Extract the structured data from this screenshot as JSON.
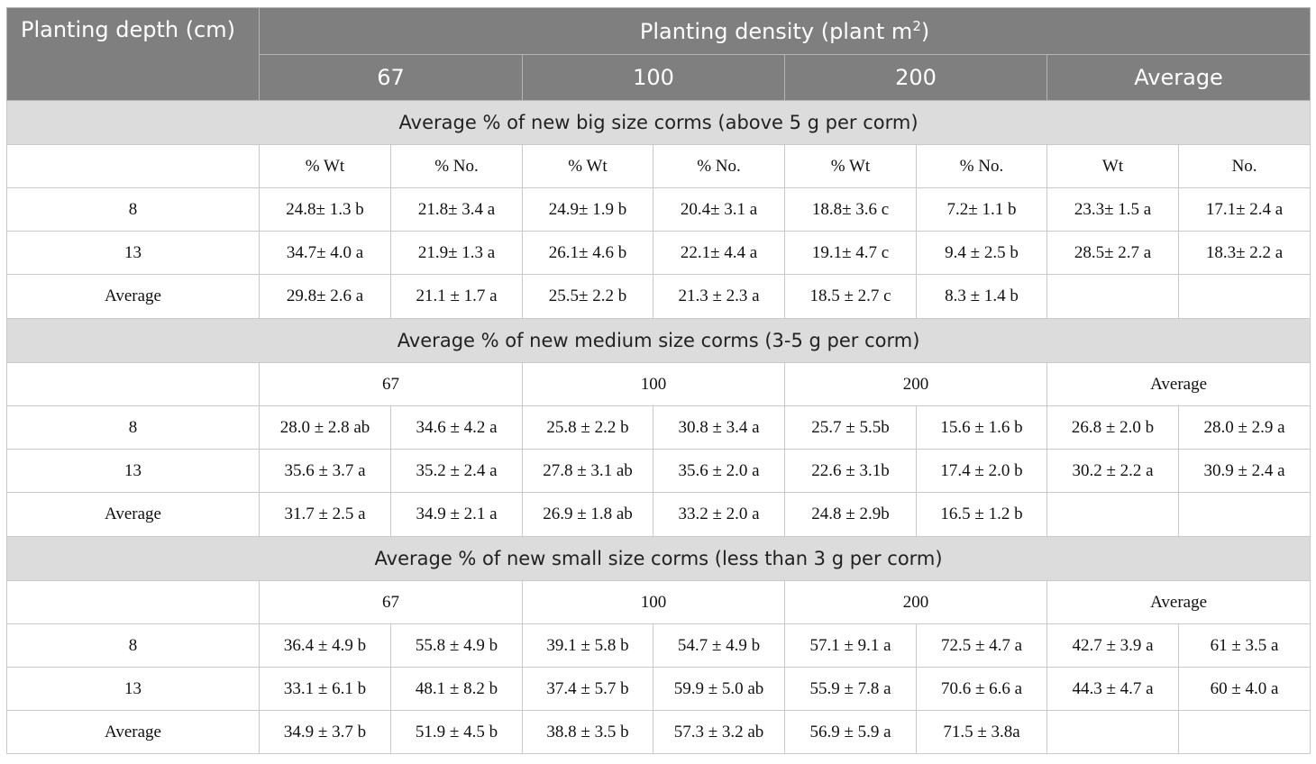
{
  "header": {
    "depth_label": "Planting depth (cm)",
    "density_label": "Planting density (plant m",
    "density_sup": "2",
    "density_close": ")",
    "columns": [
      "67",
      "100",
      "200",
      "Average"
    ]
  },
  "sections": [
    {
      "title": "Average % of new big size corms (above 5 g per corm)",
      "subheaders": [
        "% Wt",
        "% No.",
        "% Wt",
        "% No.",
        "% Wt",
        "% No.",
        "Wt",
        "No."
      ],
      "rows": [
        {
          "label": "8",
          "cells": [
            "24.8± 1.3 b",
            "21.8± 3.4 a",
            "24.9± 1.9 b",
            "20.4± 3.1 a",
            "18.8± 3.6 c",
            "7.2± 1.1 b",
            "23.3± 1.5 a",
            "17.1± 2.4 a"
          ]
        },
        {
          "label": "13",
          "cells": [
            "34.7± 4.0 a",
            "21.9± 1.3 a",
            "26.1± 4.6 b",
            "22.1± 4.4 a",
            "19.1± 4.7 c",
            "9.4 ± 2.5 b",
            "28.5± 2.7 a",
            "18.3± 2.2 a"
          ]
        },
        {
          "label": "Average",
          "cells": [
            "29.8± 2.6 a",
            "21.1 ± 1.7 a",
            "25.5± 2.2 b",
            "21.3 ± 2.3 a",
            "18.5 ± 2.7 c",
            "8.3 ± 1.4 b",
            "",
            ""
          ]
        }
      ]
    },
    {
      "title": "Average % of new medium size corms (3-5 g per corm)",
      "subheaders": [
        "67",
        "100",
        "200",
        "Average"
      ],
      "rows": [
        {
          "label": "8",
          "cells": [
            "28.0 ± 2.8 ab",
            "34.6 ± 4.2 a",
            "25.8 ± 2.2 b",
            "30.8 ± 3.4 a",
            "25.7 ± 5.5b",
            "15.6 ± 1.6 b",
            "26.8 ± 2.0 b",
            "28.0 ± 2.9 a"
          ]
        },
        {
          "label": "13",
          "cells": [
            "35.6 ± 3.7 a",
            "35.2 ± 2.4 a",
            "27.8 ± 3.1 ab",
            "35.6 ± 2.0 a",
            "22.6 ± 3.1b",
            "17.4 ± 2.0 b",
            "30.2 ± 2.2 a",
            "30.9 ± 2.4 a"
          ]
        },
        {
          "label": "Average",
          "cells": [
            "31.7 ± 2.5 a",
            "34.9 ± 2.1 a",
            "26.9 ± 1.8 ab",
            "33.2 ± 2.0 a",
            "24.8 ± 2.9b",
            "16.5 ± 1.2 b",
            "",
            ""
          ]
        }
      ]
    },
    {
      "title": "Average % of new small size corms (less than 3 g per corm)",
      "subheaders": [
        "67",
        "100",
        "200",
        "Average"
      ],
      "rows": [
        {
          "label": "8",
          "cells": [
            "36.4 ± 4.9 b",
            "55.8 ± 4.9 b",
            "39.1 ± 5.8 b",
            "54.7 ± 4.9 b",
            "57.1 ± 9.1 a",
            "72.5 ± 4.7 a",
            "42.7 ± 3.9 a",
            "61 ± 3.5 a"
          ]
        },
        {
          "label": "13",
          "cells": [
            "33.1 ± 6.1 b",
            "48.1 ± 8.2 b",
            "37.4 ± 5.7 b",
            "59.9 ± 5.0 ab",
            "55.9 ± 7.8 a",
            "70.6 ± 6.6 a",
            "44.3 ± 4.7 a",
            "60 ± 4.0 a"
          ]
        },
        {
          "label": "Average",
          "cells": [
            "34.9 ± 3.7 b",
            "51.9 ± 4.5 b",
            "38.8 ± 3.5 b",
            "57.3 ± 3.2 ab",
            "56.9 ± 5.9 a",
            "71.5 ± 3.8a",
            "",
            ""
          ]
        }
      ]
    }
  ]
}
